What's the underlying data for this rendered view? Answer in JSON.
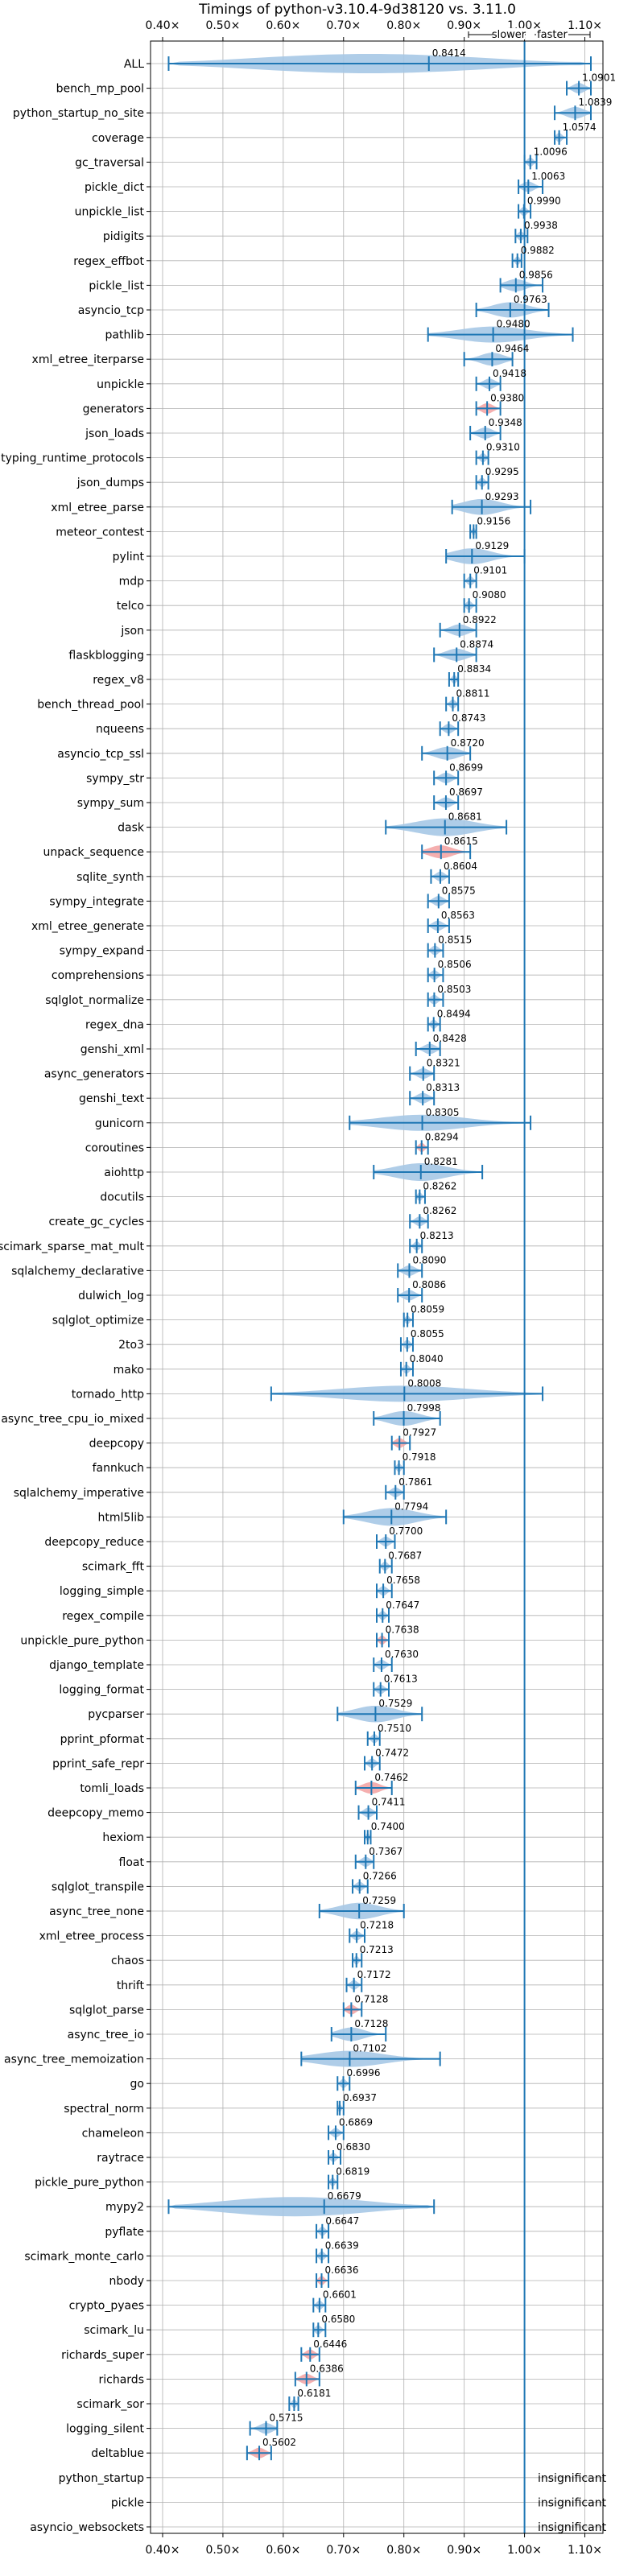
{
  "chart_data": {
    "type": "violin",
    "title": "Timings of python-v3.10.4-9d38120 vs. 3.11.0",
    "direction_labels": {
      "slower": "slower",
      "faster": "faster"
    },
    "xlim": [
      0.38,
      1.13
    ],
    "xticks": [
      0.4,
      0.5,
      0.6,
      0.7,
      0.8,
      0.9,
      1.0,
      1.1
    ],
    "xtick_labels": [
      "0.40×",
      "0.50×",
      "0.60×",
      "0.70×",
      "0.80×",
      "0.90×",
      "1.00×",
      "1.10×"
    ],
    "reference_line": 1.0,
    "grid": true,
    "colors": {
      "violin": "#a6c8e6",
      "violin_highlight": "#f4a6a6",
      "line": "#1f77b4"
    },
    "insignificant_label": "insignificant",
    "benchmarks": [
      {
        "name": "ALL",
        "value": 0.8414,
        "label": "0.8414",
        "min": 0.41,
        "max": 1.11,
        "width": 0.4,
        "dist": "long"
      },
      {
        "name": "bench_mp_pool",
        "value": 1.0901,
        "label": "1.0901",
        "min": 1.07,
        "max": 1.11
      },
      {
        "name": "python_startup_no_site",
        "value": 1.0839,
        "label": "1.0839",
        "min": 1.05,
        "max": 1.11
      },
      {
        "name": "coverage",
        "value": 1.0574,
        "label": "1.0574",
        "min": 1.05,
        "max": 1.07
      },
      {
        "name": "gc_traversal",
        "value": 1.0096,
        "label": "1.0096",
        "min": 1.0,
        "max": 1.02
      },
      {
        "name": "pickle_dict",
        "value": 1.0063,
        "label": "1.0063",
        "min": 0.99,
        "max": 1.03
      },
      {
        "name": "unpickle_list",
        "value": 0.999,
        "label": "0.9990",
        "min": 0.99,
        "max": 1.01
      },
      {
        "name": "pidigits",
        "value": 0.9938,
        "label": "0.9938",
        "min": 0.985,
        "max": 1.005
      },
      {
        "name": "regex_effbot",
        "value": 0.9882,
        "label": "0.9882",
        "min": 0.98,
        "max": 0.995
      },
      {
        "name": "pickle_list",
        "value": 0.9856,
        "label": "0.9856",
        "min": 0.96,
        "max": 1.03
      },
      {
        "name": "asyncio_tcp",
        "value": 0.9763,
        "label": "0.9763",
        "min": 0.92,
        "max": 1.04
      },
      {
        "name": "pathlib",
        "value": 0.948,
        "label": "0.9480",
        "min": 0.84,
        "max": 1.08
      },
      {
        "name": "xml_etree_iterparse",
        "value": 0.9464,
        "label": "0.9464",
        "min": 0.9,
        "max": 0.98
      },
      {
        "name": "unpickle",
        "value": 0.9418,
        "label": "0.9418",
        "min": 0.92,
        "max": 0.96
      },
      {
        "name": "generators",
        "value": 0.938,
        "label": "0.9380",
        "min": 0.92,
        "max": 0.96,
        "highlight": true
      },
      {
        "name": "json_loads",
        "value": 0.9348,
        "label": "0.9348",
        "min": 0.91,
        "max": 0.96
      },
      {
        "name": "typing_runtime_protocols",
        "value": 0.931,
        "label": "0.9310",
        "min": 0.92,
        "max": 0.94
      },
      {
        "name": "json_dumps",
        "value": 0.9295,
        "label": "0.9295",
        "min": 0.92,
        "max": 0.94
      },
      {
        "name": "xml_etree_parse",
        "value": 0.9293,
        "label": "0.9293",
        "min": 0.88,
        "max": 1.01
      },
      {
        "name": "meteor_contest",
        "value": 0.9156,
        "label": "0.9156",
        "min": 0.91,
        "max": 0.92
      },
      {
        "name": "pylint",
        "value": 0.9129,
        "label": "0.9129",
        "min": 0.87,
        "max": 1.0
      },
      {
        "name": "mdp",
        "value": 0.9101,
        "label": "0.9101",
        "min": 0.9,
        "max": 0.92
      },
      {
        "name": "telco",
        "value": 0.908,
        "label": "0.9080",
        "min": 0.9,
        "max": 0.92
      },
      {
        "name": "json",
        "value": 0.8922,
        "label": "0.8922",
        "min": 0.86,
        "max": 0.92
      },
      {
        "name": "flaskblogging",
        "value": 0.8874,
        "label": "0.8874",
        "min": 0.85,
        "max": 0.92
      },
      {
        "name": "regex_v8",
        "value": 0.8834,
        "label": "0.8834",
        "min": 0.875,
        "max": 0.89
      },
      {
        "name": "bench_thread_pool",
        "value": 0.8811,
        "label": "0.8811",
        "min": 0.87,
        "max": 0.89
      },
      {
        "name": "nqueens",
        "value": 0.8743,
        "label": "0.8743",
        "min": 0.86,
        "max": 0.89
      },
      {
        "name": "asyncio_tcp_ssl",
        "value": 0.872,
        "label": "0.8720",
        "min": 0.83,
        "max": 0.91
      },
      {
        "name": "sympy_str",
        "value": 0.8699,
        "label": "0.8699",
        "min": 0.85,
        "max": 0.89
      },
      {
        "name": "sympy_sum",
        "value": 0.8697,
        "label": "0.8697",
        "min": 0.85,
        "max": 0.89
      },
      {
        "name": "dask",
        "value": 0.8681,
        "label": "0.8681",
        "min": 0.77,
        "max": 0.97
      },
      {
        "name": "unpack_sequence",
        "value": 0.8615,
        "label": "0.8615",
        "min": 0.83,
        "max": 0.91,
        "highlight": true
      },
      {
        "name": "sqlite_synth",
        "value": 0.8604,
        "label": "0.8604",
        "min": 0.845,
        "max": 0.875
      },
      {
        "name": "sympy_integrate",
        "value": 0.8575,
        "label": "0.8575",
        "min": 0.84,
        "max": 0.875
      },
      {
        "name": "xml_etree_generate",
        "value": 0.8563,
        "label": "0.8563",
        "min": 0.84,
        "max": 0.875
      },
      {
        "name": "sympy_expand",
        "value": 0.8515,
        "label": "0.8515",
        "min": 0.84,
        "max": 0.865
      },
      {
        "name": "comprehensions",
        "value": 0.8506,
        "label": "0.8506",
        "min": 0.84,
        "max": 0.865
      },
      {
        "name": "sqlglot_normalize",
        "value": 0.8503,
        "label": "0.8503",
        "min": 0.84,
        "max": 0.865
      },
      {
        "name": "regex_dna",
        "value": 0.8494,
        "label": "0.8494",
        "min": 0.84,
        "max": 0.86
      },
      {
        "name": "genshi_xml",
        "value": 0.8428,
        "label": "0.8428",
        "min": 0.82,
        "max": 0.86
      },
      {
        "name": "async_generators",
        "value": 0.8321,
        "label": "0.8321",
        "min": 0.81,
        "max": 0.85
      },
      {
        "name": "genshi_text",
        "value": 0.8313,
        "label": "0.8313",
        "min": 0.81,
        "max": 0.85
      },
      {
        "name": "gunicorn",
        "value": 0.8305,
        "label": "0.8305",
        "min": 0.71,
        "max": 1.01
      },
      {
        "name": "coroutines",
        "value": 0.8294,
        "label": "0.8294",
        "min": 0.82,
        "max": 0.84,
        "highlight": true
      },
      {
        "name": "aiohttp",
        "value": 0.8281,
        "label": "0.8281",
        "min": 0.75,
        "max": 0.93
      },
      {
        "name": "docutils",
        "value": 0.8262,
        "label": "0.8262",
        "min": 0.82,
        "max": 0.835
      },
      {
        "name": "create_gc_cycles",
        "value": 0.8262,
        "label": "0.8262",
        "min": 0.81,
        "max": 0.84
      },
      {
        "name": "scimark_sparse_mat_mult",
        "value": 0.8213,
        "label": "0.8213",
        "min": 0.81,
        "max": 0.83
      },
      {
        "name": "sqlalchemy_declarative",
        "value": 0.809,
        "label": "0.8090",
        "min": 0.79,
        "max": 0.83
      },
      {
        "name": "dulwich_log",
        "value": 0.8086,
        "label": "0.8086",
        "min": 0.79,
        "max": 0.83
      },
      {
        "name": "sqlglot_optimize",
        "value": 0.8059,
        "label": "0.8059",
        "min": 0.8,
        "max": 0.815
      },
      {
        "name": "2to3",
        "value": 0.8055,
        "label": "0.8055",
        "min": 0.795,
        "max": 0.815
      },
      {
        "name": "mako",
        "value": 0.804,
        "label": "0.8040",
        "min": 0.795,
        "max": 0.815
      },
      {
        "name": "tornado_http",
        "value": 0.8008,
        "label": "0.8008",
        "min": 0.58,
        "max": 1.03
      },
      {
        "name": "async_tree_cpu_io_mixed",
        "value": 0.7998,
        "label": "0.7998",
        "min": 0.75,
        "max": 0.86
      },
      {
        "name": "deepcopy",
        "value": 0.7927,
        "label": "0.7927",
        "min": 0.78,
        "max": 0.81,
        "highlight": true
      },
      {
        "name": "fannkuch",
        "value": 0.7918,
        "label": "0.7918",
        "min": 0.785,
        "max": 0.8
      },
      {
        "name": "sqlalchemy_imperative",
        "value": 0.7861,
        "label": "0.7861",
        "min": 0.77,
        "max": 0.8
      },
      {
        "name": "html5lib",
        "value": 0.7794,
        "label": "0.7794",
        "min": 0.7,
        "max": 0.87
      },
      {
        "name": "deepcopy_reduce",
        "value": 0.77,
        "label": "0.7700",
        "min": 0.755,
        "max": 0.785
      },
      {
        "name": "scimark_fft",
        "value": 0.7687,
        "label": "0.7687",
        "min": 0.76,
        "max": 0.78
      },
      {
        "name": "logging_simple",
        "value": 0.7658,
        "label": "0.7658",
        "min": 0.755,
        "max": 0.78
      },
      {
        "name": "regex_compile",
        "value": 0.7647,
        "label": "0.7647",
        "min": 0.755,
        "max": 0.775
      },
      {
        "name": "unpickle_pure_python",
        "value": 0.7638,
        "label": "0.7638",
        "min": 0.755,
        "max": 0.775,
        "highlight": true
      },
      {
        "name": "django_template",
        "value": 0.763,
        "label": "0.7630",
        "min": 0.75,
        "max": 0.78
      },
      {
        "name": "logging_format",
        "value": 0.7613,
        "label": "0.7613",
        "min": 0.75,
        "max": 0.775
      },
      {
        "name": "pycparser",
        "value": 0.7529,
        "label": "0.7529",
        "min": 0.69,
        "max": 0.83
      },
      {
        "name": "pprint_pformat",
        "value": 0.751,
        "label": "0.7510",
        "min": 0.74,
        "max": 0.76
      },
      {
        "name": "pprint_safe_repr",
        "value": 0.7472,
        "label": "0.7472",
        "min": 0.735,
        "max": 0.76
      },
      {
        "name": "tomli_loads",
        "value": 0.7462,
        "label": "0.7462",
        "min": 0.72,
        "max": 0.78,
        "highlight": true
      },
      {
        "name": "deepcopy_memo",
        "value": 0.7411,
        "label": "0.7411",
        "min": 0.725,
        "max": 0.755
      },
      {
        "name": "hexiom",
        "value": 0.74,
        "label": "0.7400",
        "min": 0.735,
        "max": 0.745
      },
      {
        "name": "float",
        "value": 0.7367,
        "label": "0.7367",
        "min": 0.72,
        "max": 0.75
      },
      {
        "name": "sqlglot_transpile",
        "value": 0.7266,
        "label": "0.7266",
        "min": 0.715,
        "max": 0.74
      },
      {
        "name": "async_tree_none",
        "value": 0.7259,
        "label": "0.7259",
        "min": 0.66,
        "max": 0.8
      },
      {
        "name": "xml_etree_process",
        "value": 0.7218,
        "label": "0.7218",
        "min": 0.71,
        "max": 0.735
      },
      {
        "name": "chaos",
        "value": 0.7213,
        "label": "0.7213",
        "min": 0.715,
        "max": 0.73
      },
      {
        "name": "thrift",
        "value": 0.7172,
        "label": "0.7172",
        "min": 0.705,
        "max": 0.73
      },
      {
        "name": "sqlglot_parse",
        "value": 0.7128,
        "label": "0.7128",
        "min": 0.7,
        "max": 0.73,
        "highlight": true
      },
      {
        "name": "async_tree_io",
        "value": 0.7128,
        "label": "0.7128",
        "min": 0.68,
        "max": 0.77
      },
      {
        "name": "async_tree_memoization",
        "value": 0.7102,
        "label": "0.7102",
        "min": 0.63,
        "max": 0.86
      },
      {
        "name": "go",
        "value": 0.6996,
        "label": "0.6996",
        "min": 0.69,
        "max": 0.71
      },
      {
        "name": "spectral_norm",
        "value": 0.6937,
        "label": "0.6937",
        "min": 0.69,
        "max": 0.7
      },
      {
        "name": "chameleon",
        "value": 0.6869,
        "label": "0.6869",
        "min": 0.675,
        "max": 0.7
      },
      {
        "name": "raytrace",
        "value": 0.683,
        "label": "0.6830",
        "min": 0.675,
        "max": 0.695
      },
      {
        "name": "pickle_pure_python",
        "value": 0.6819,
        "label": "0.6819",
        "min": 0.675,
        "max": 0.69
      },
      {
        "name": "mypy2",
        "value": 0.6679,
        "label": "0.6679",
        "min": 0.41,
        "max": 0.85,
        "dist": "long"
      },
      {
        "name": "pyflate",
        "value": 0.6647,
        "label": "0.6647",
        "min": 0.655,
        "max": 0.675
      },
      {
        "name": "scimark_monte_carlo",
        "value": 0.6639,
        "label": "0.6639",
        "min": 0.655,
        "max": 0.675
      },
      {
        "name": "nbody",
        "value": 0.6636,
        "label": "0.6636",
        "min": 0.655,
        "max": 0.675,
        "highlight": true
      },
      {
        "name": "crypto_pyaes",
        "value": 0.6601,
        "label": "0.6601",
        "min": 0.65,
        "max": 0.67
      },
      {
        "name": "scimark_lu",
        "value": 0.658,
        "label": "0.6580",
        "min": 0.65,
        "max": 0.67
      },
      {
        "name": "richards_super",
        "value": 0.6446,
        "label": "0.6446",
        "min": 0.63,
        "max": 0.66,
        "highlight": true
      },
      {
        "name": "richards",
        "value": 0.6386,
        "label": "0.6386",
        "min": 0.62,
        "max": 0.66,
        "highlight": true
      },
      {
        "name": "scimark_sor",
        "value": 0.6181,
        "label": "0.6181",
        "min": 0.61,
        "max": 0.625
      },
      {
        "name": "logging_silent",
        "value": 0.5715,
        "label": "0.5715",
        "min": 0.545,
        "max": 0.59
      },
      {
        "name": "deltablue",
        "value": 0.5602,
        "label": "0.5602",
        "min": 0.54,
        "max": 0.58,
        "highlight": true
      },
      {
        "name": "python_startup",
        "insignificant": true
      },
      {
        "name": "pickle",
        "insignificant": true
      },
      {
        "name": "asyncio_websockets",
        "insignificant": true
      }
    ]
  }
}
